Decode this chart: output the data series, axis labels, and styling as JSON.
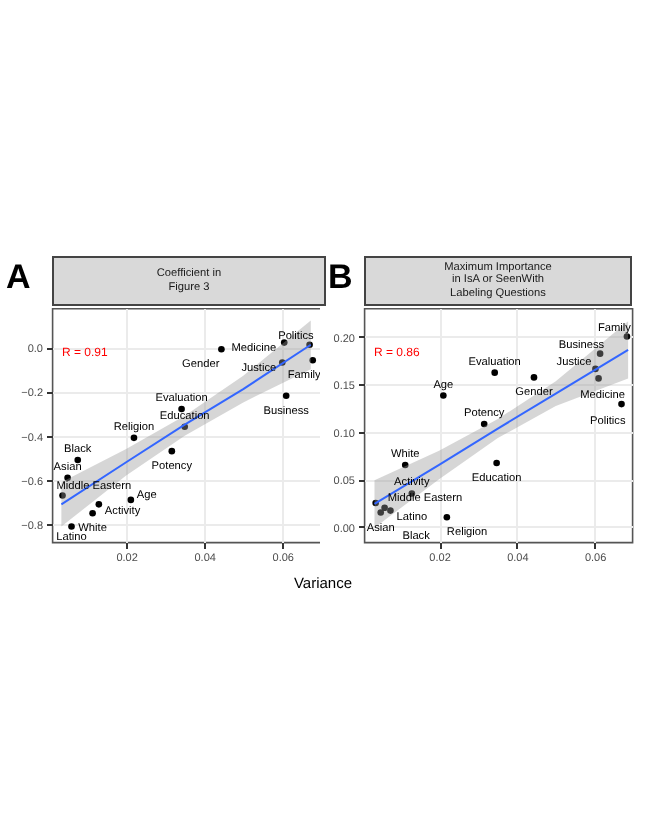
{
  "chart_data": [
    {
      "type": "scatter",
      "title": "Coefficient in\nFigure 3",
      "xlabel": "Variance",
      "xlim": [
        0.001,
        0.0712
      ],
      "ylim": [
        -0.88,
        0.176
      ],
      "xticks": [
        0.02,
        0.04,
        0.06
      ],
      "yticks": [
        -0.8,
        -0.6,
        -0.4,
        -0.2,
        {
          "value": 0,
          "label": "0.0"
        }
      ],
      "grid": true,
      "series": [
        {
          "type": "scatter",
          "marker": "circle",
          "color": "#000000",
          "x": [
            0.0605,
            0.067,
            0.0444,
            0.0678,
            0.06,
            0.061,
            0.0342,
            0.035,
            0.022,
            0.0317,
            0.0076,
            0.005,
            0.0037,
            0.0212,
            0.013,
            0.0114,
            0.006
          ],
          "values": [
            0.02,
            0.01,
            -0.01,
            -0.06,
            -0.07,
            -0.22,
            -0.28,
            -0.36,
            -0.41,
            -0.47,
            -0.51,
            -0.59,
            -0.67,
            -0.69,
            -0.71,
            -0.75,
            -0.81
          ]
        },
        {
          "type": "line",
          "marker": "none",
          "color": "#3366ff",
          "x": [
            0.0034,
            0.02,
            0.035,
            0.05,
            0.0673
          ],
          "values": [
            -0.71,
            -0.52,
            -0.35,
            -0.19,
            0.01
          ],
          "lower": [
            -0.81,
            -0.58,
            -0.4,
            -0.25,
            -0.1
          ],
          "upper": [
            -0.61,
            -0.46,
            -0.31,
            -0.13,
            0.12
          ]
        }
      ],
      "annotations": [
        "A",
        "R = 0.91",
        {
          "text": "Medicine",
          "x": 0.0605,
          "y": 0.02
        },
        {
          "text": "Politics",
          "x": 0.067,
          "y": 0.01
        },
        {
          "text": "Gender",
          "x": 0.0444,
          "y": -0.01
        },
        {
          "text": "Family",
          "x": 0.0678,
          "y": -0.06
        },
        {
          "text": "Justice",
          "x": 0.06,
          "y": -0.07
        },
        {
          "text": "Business",
          "x": 0.061,
          "y": -0.22
        },
        {
          "text": "Evaluation",
          "x": 0.0342,
          "y": -0.28
        },
        {
          "text": "Education",
          "x": 0.035,
          "y": -0.36
        },
        {
          "text": "Religion",
          "x": 0.022,
          "y": -0.41
        },
        {
          "text": "Potency",
          "x": 0.0317,
          "y": -0.47
        },
        {
          "text": "Black",
          "x": 0.0076,
          "y": -0.51
        },
        {
          "text": "Asian",
          "x": 0.005,
          "y": -0.59
        },
        {
          "text": "Middle Eastern",
          "x": 0.0037,
          "y": -0.67
        },
        {
          "text": "Age",
          "x": 0.0212,
          "y": -0.69
        },
        {
          "text": "Activity",
          "x": 0.013,
          "y": -0.71
        },
        {
          "text": "White",
          "x": 0.0114,
          "y": -0.75
        },
        {
          "text": "Latino",
          "x": 0.006,
          "y": -0.81
        }
      ]
    },
    {
      "type": "scatter",
      "title": "Maximum Importance\nin IsA or SeenWith\nLabeling Questions",
      "xlim": [
        0.0007,
        0.0696
      ],
      "ylim": [
        -0.016,
        0.23
      ],
      "xticks": [
        0.02,
        0.04,
        0.06
      ],
      "yticks": [
        {
          "value": 0,
          "label": "0.00"
        },
        0.05,
        {
          "value": 0.1,
          "label": "0.10"
        },
        0.15,
        {
          "value": 0.2,
          "label": "0.20"
        }
      ],
      "grid": true,
      "series": [
        {
          "type": "scatter",
          "marker": "circle",
          "color": "#000000",
          "x": [
            0.0683,
            0.0614,
            0.0602,
            0.061,
            0.0669,
            0.0343,
            0.0444,
            0.0211,
            0.0316,
            0.0348,
            0.0113,
            0.013,
            0.0037,
            0.006,
            0.005,
            0.0075,
            0.022
          ],
          "values": [
            0.2,
            0.182,
            0.166,
            0.156,
            0.129,
            0.162,
            0.157,
            0.138,
            0.108,
            0.067,
            0.065,
            0.035,
            0.025,
            0.02,
            0.015,
            0.017,
            0.01
          ]
        },
        {
          "type": "line",
          "marker": "none",
          "color": "#3366ff",
          "x": [
            0.0034,
            0.02,
            0.035,
            0.05,
            0.0686
          ],
          "values": [
            0.024,
            0.065,
            0.103,
            0.14,
            0.186
          ],
          "lower": [
            -0.001,
            0.05,
            0.093,
            0.127,
            0.156
          ],
          "upper": [
            0.049,
            0.08,
            0.113,
            0.153,
            0.216
          ]
        }
      ],
      "annotations": [
        "B",
        "R = 0.86",
        {
          "text": "Family",
          "x": 0.0683,
          "y": 0.2
        },
        {
          "text": "Business",
          "x": 0.0614,
          "y": 0.182
        },
        {
          "text": "Justice",
          "x": 0.0602,
          "y": 0.166
        },
        {
          "text": "Medicine",
          "x": 0.061,
          "y": 0.156
        },
        {
          "text": "Politics",
          "x": 0.0669,
          "y": 0.129
        },
        {
          "text": "Evaluation",
          "x": 0.0343,
          "y": 0.162
        },
        {
          "text": "Gender",
          "x": 0.0444,
          "y": 0.157
        },
        {
          "text": "Age",
          "x": 0.0211,
          "y": 0.138
        },
        {
          "text": "Potency",
          "x": 0.0316,
          "y": 0.108
        },
        {
          "text": "Education",
          "x": 0.0348,
          "y": 0.067
        },
        {
          "text": "White",
          "x": 0.0113,
          "y": 0.065
        },
        {
          "text": "Activity",
          "x": 0.013,
          "y": 0.035
        },
        {
          "text": "Middle Eastern",
          "x": 0.0037,
          "y": 0.025
        },
        {
          "text": "Latino",
          "x": 0.006,
          "y": 0.02
        },
        {
          "text": "Asian",
          "x": 0.005,
          "y": 0.015
        },
        {
          "text": "Black",
          "x": 0.0075,
          "y": 0.017
        },
        {
          "text": "Religion",
          "x": 0.022,
          "y": 0.01
        }
      ]
    }
  ]
}
